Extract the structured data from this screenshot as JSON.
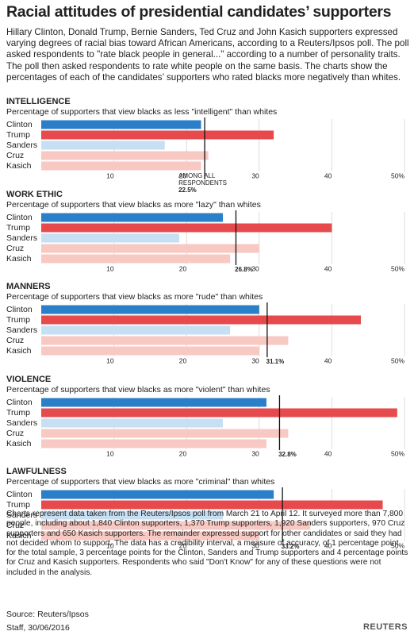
{
  "title": "Racial attitudes of presidential candidates’ supporters",
  "intro": "Hillary Clinton, Donald Trump, Bernie Sanders, Ted Cruz and John Kasich supporters expressed varying degrees of racial bias toward African Americans, according to a Reuters/Ipsos poll. The poll asked respondents to \"rate black people in general...\" according to a number of personality traits. The poll then asked respondents to rate white people on the same basis. The charts show the percentages of each of the candidates’ supporters who rated blacks more negatively than whites.",
  "notes": "Charts represent data taken from the Reuters/Ipsos poll from March 21 to April 12. It surveyed more than 7,800 people, including about 1,840 Clinton supporters, 1,370 Trump supporters, 1,920 Sanders supporters, 970 Cruz supporters and 650 Kasich supporters. The remainder expressed support for other candidates or said they had not decided whom to support. The data has a credibility interval, a measure of accuracy, of 1 percentage point for the total sample, 3 percentage points for the Clinton, Sanders and Trump supporters and 4 percentage points for Cruz and Kasich supporters. Respondents who said \"Don't Know\" for any of these questions were not included in the analysis.",
  "source": "Source: Reuters/Ipsos",
  "credit": "Staff, 30/06/2016",
  "logo": "REUTERS",
  "chart_data": [
    {
      "type": "bar",
      "orientation": "horizontal",
      "title": "INTELLIGENCE",
      "subtitle": "Percentage of supporters that view blacks as less \"intelligent\" than whites",
      "categories": [
        "Clinton",
        "Trump",
        "Sanders",
        "Cruz",
        "Kasich"
      ],
      "values": [
        22,
        32,
        17,
        23,
        22
      ],
      "colors": [
        "#2b7fc8",
        "#e64a4c",
        "#c7dff3",
        "#f8c8c2",
        "#f8c8c2"
      ],
      "xlim": [
        0,
        50
      ],
      "xticks": [
        10,
        20,
        30,
        40,
        {
          "value": 50,
          "label": "50%"
        }
      ],
      "grid": true,
      "reference": {
        "value": 22.5,
        "label": "22.5%",
        "note": [
          "AMONG ALL",
          "RESPONDENTS"
        ]
      }
    },
    {
      "type": "bar",
      "orientation": "horizontal",
      "title": "WORK ETHIC",
      "subtitle": "Percentage of supporters that view blacks as more \"lazy\" than whites",
      "categories": [
        "Clinton",
        "Trump",
        "Sanders",
        "Cruz",
        "Kasich"
      ],
      "values": [
        25,
        40,
        19,
        30,
        26
      ],
      "colors": [
        "#2b7fc8",
        "#e64a4c",
        "#c7dff3",
        "#f8c8c2",
        "#f8c8c2"
      ],
      "xlim": [
        0,
        50
      ],
      "xticks": [
        10,
        20,
        30,
        40,
        {
          "value": 50,
          "label": "50%"
        }
      ],
      "grid": true,
      "reference": {
        "value": 26.8,
        "label": "26.8%"
      }
    },
    {
      "type": "bar",
      "orientation": "horizontal",
      "title": "MANNERS",
      "subtitle": "Percentage of supporters that view blacks as more \"rude\" than whites",
      "categories": [
        "Clinton",
        "Trump",
        "Sanders",
        "Cruz",
        "Kasich"
      ],
      "values": [
        30,
        44,
        26,
        34,
        30
      ],
      "colors": [
        "#2b7fc8",
        "#e64a4c",
        "#c7dff3",
        "#f8c8c2",
        "#f8c8c2"
      ],
      "xlim": [
        0,
        50
      ],
      "xticks": [
        10,
        20,
        30,
        40,
        {
          "value": 50,
          "label": "50%"
        }
      ],
      "grid": true,
      "reference": {
        "value": 31.1,
        "label": "31.1%"
      }
    },
    {
      "type": "bar",
      "orientation": "horizontal",
      "title": "VIOLENCE",
      "subtitle": "Percentage of supporters that view blacks as more \"violent\" than whites",
      "categories": [
        "Clinton",
        "Trump",
        "Sanders",
        "Cruz",
        "Kasich"
      ],
      "values": [
        31,
        49,
        25,
        34,
        31
      ],
      "colors": [
        "#2b7fc8",
        "#e64a4c",
        "#c7dff3",
        "#f8c8c2",
        "#f8c8c2"
      ],
      "xlim": [
        0,
        50
      ],
      "xticks": [
        10,
        20,
        30,
        40,
        {
          "value": 50,
          "label": "50%"
        }
      ],
      "grid": true,
      "reference": {
        "value": 32.8,
        "label": "32.8%"
      }
    },
    {
      "type": "bar",
      "orientation": "horizontal",
      "title": "LAWFULNESS",
      "subtitle": "Percentage of supporters that view blacks as more \"criminal\" than whites",
      "categories": [
        "Clinton",
        "Trump",
        "Sanders",
        "Cruz",
        "Kasich"
      ],
      "values": [
        32,
        47,
        25,
        37,
        30
      ],
      "colors": [
        "#2b7fc8",
        "#e64a4c",
        "#c7dff3",
        "#f8c8c2",
        "#f8c8c2"
      ],
      "xlim": [
        0,
        50
      ],
      "xticks": [
        10,
        20,
        30,
        40,
        {
          "value": 50,
          "label": "50%"
        }
      ],
      "grid": true,
      "reference": {
        "value": 33.2,
        "label": "33.2%"
      }
    }
  ]
}
